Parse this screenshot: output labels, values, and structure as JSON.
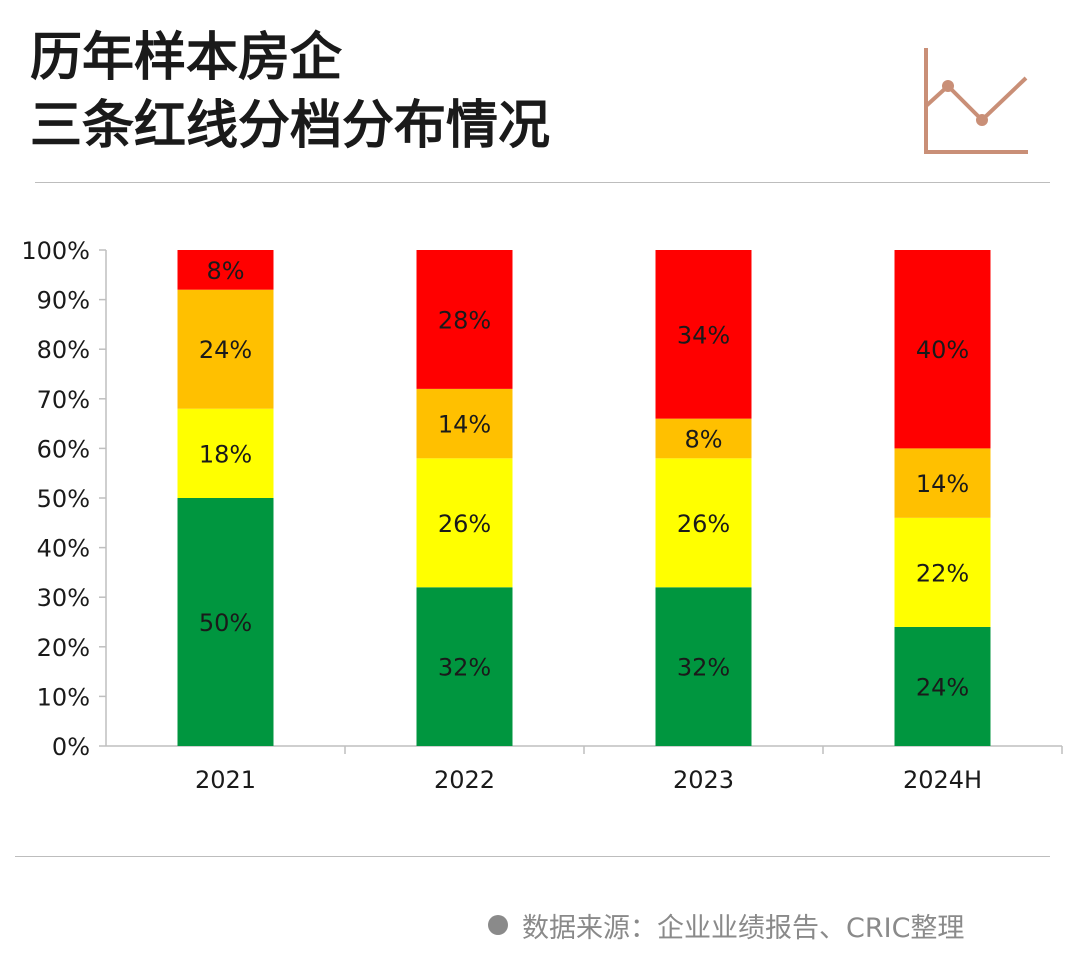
{
  "title": {
    "line1": "历年样本房企",
    "line2": "三条红线分档分布情况"
  },
  "logo_icon": "line-chart-icon",
  "accent_color": "#c98f77",
  "source": {
    "icon": "bullet-dot-icon",
    "text": "数据来源：企业业绩报告、CRIC整理"
  },
  "chart_data": {
    "type": "bar",
    "stacked": true,
    "title": "历年样本房企三条红线分档分布情况",
    "categories": [
      "2021",
      "2022",
      "2023",
      "2024H"
    ],
    "series": [
      {
        "color": "#00963f",
        "values": [
          50,
          32,
          32,
          24
        ],
        "labels": [
          "50%",
          "32%",
          "32%",
          "24%"
        ]
      },
      {
        "color": "#ffff00",
        "values": [
          18,
          26,
          26,
          22
        ],
        "labels": [
          "18%",
          "26%",
          "26%",
          "22%"
        ]
      },
      {
        "color": "#ffc000",
        "values": [
          24,
          14,
          8,
          14
        ],
        "labels": [
          "24%",
          "14%",
          "8%",
          "14%"
        ]
      },
      {
        "color": "#ff0000",
        "values": [
          8,
          28,
          34,
          40
        ],
        "labels": [
          "8%",
          "28%",
          "34%",
          "40%"
        ]
      }
    ],
    "ylim": [
      0,
      100
    ],
    "yticks": [
      "0%",
      "10%",
      "20%",
      "30%",
      "40%",
      "50%",
      "60%",
      "70%",
      "80%",
      "90%",
      "100%"
    ],
    "grid": false,
    "legend": "none"
  }
}
